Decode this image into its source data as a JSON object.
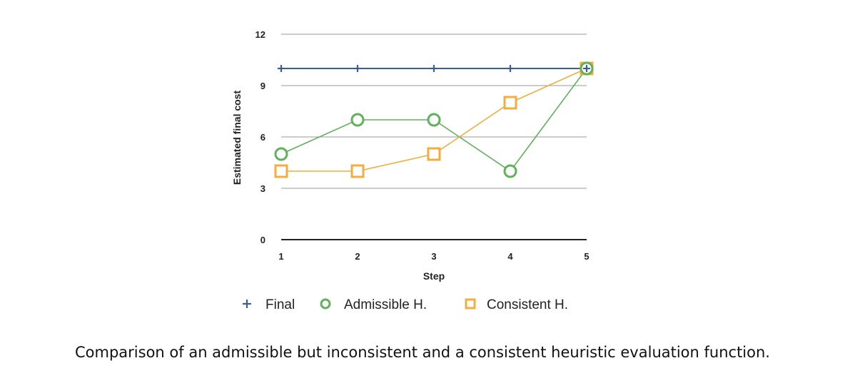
{
  "caption": "Comparison of an admissible but inconsistent and a consistent heuristic evaluation function.",
  "chart_data": {
    "type": "line",
    "xlabel": "Step",
    "ylabel": "Estimated final cost",
    "x": [
      1,
      2,
      3,
      4,
      5
    ],
    "x_tick_labels": [
      "1",
      "2",
      "3",
      "4",
      "5"
    ],
    "ylim": [
      0,
      12
    ],
    "y_ticks": [
      0,
      3,
      6,
      9,
      12
    ],
    "y_tick_labels": [
      "0",
      "3",
      "6",
      "9",
      "12"
    ],
    "grid": true,
    "legend_position": "bottom",
    "series": [
      {
        "name": "Final",
        "values": [
          10,
          10,
          10,
          10,
          10
        ],
        "color": "#3a5f93",
        "marker": "plus"
      },
      {
        "name": "Admissible H.",
        "values": [
          5,
          7,
          7,
          4,
          10
        ],
        "color": "#5fb25a",
        "marker": "circle"
      },
      {
        "name": "Consistent H.",
        "values": [
          4,
          4,
          5,
          8,
          10
        ],
        "color": "#f2ad3e",
        "marker": "square"
      }
    ]
  }
}
